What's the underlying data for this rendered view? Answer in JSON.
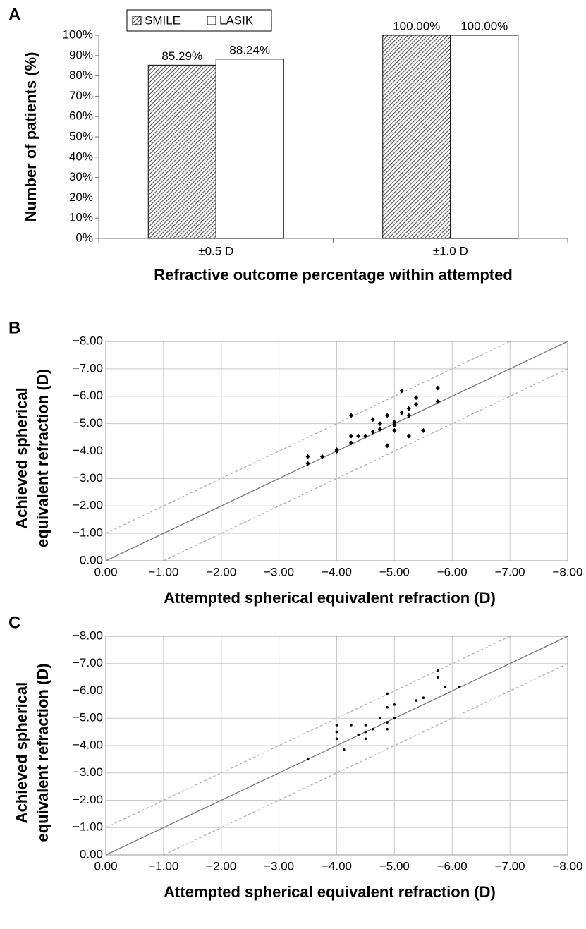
{
  "chart_data": [
    {
      "type": "bar",
      "panel": "A",
      "xlabel": "Refractive outcome percentage within attempted",
      "ylabel": "Number of patients (%)",
      "categories": [
        "±0.5 D",
        "±1.0 D"
      ],
      "series": [
        {
          "name": "SMILE",
          "color": "#555555",
          "hatch": true,
          "values": [
            85.29,
            100
          ],
          "value_labels": [
            "85.29%",
            "100.00%"
          ]
        },
        {
          "name": "LASIK",
          "color": "#ffffff",
          "hatch": false,
          "values": [
            88.24,
            100
          ],
          "value_labels": [
            "88.24%",
            "100.00%"
          ]
        }
      ],
      "ylim": [
        0,
        100
      ],
      "yticks": [
        {
          "value": 0,
          "label": "0%"
        },
        {
          "value": 10,
          "label": "10%"
        },
        {
          "value": 20,
          "label": "20%"
        },
        {
          "value": 30,
          "label": "30%"
        },
        {
          "value": 40,
          "label": "40%"
        },
        {
          "value": 50,
          "label": "50%"
        },
        {
          "value": 60,
          "label": "60%"
        },
        {
          "value": 70,
          "label": "70%"
        },
        {
          "value": 80,
          "label": "80%"
        },
        {
          "value": 90,
          "label": "90%"
        },
        {
          "value": 100,
          "label": "100%"
        }
      ],
      "legend": "top-left",
      "grid": false
    },
    {
      "type": "scatter",
      "panel": "B",
      "xlabel": "Attempted spherical equivalent refraction (D)",
      "ylabel": [
        "Achieved spherical",
        "equivalent refraction (D)"
      ],
      "marker": "diamond",
      "color": "#000000",
      "x": [
        -3.5,
        -3.5,
        -3.75,
        -4.0,
        -4.0,
        -4.25,
        -4.25,
        -4.25,
        -4.375,
        -4.5,
        -4.625,
        -4.625,
        -4.75,
        -4.75,
        -4.875,
        -4.875,
        -5.0,
        -5.0,
        -5.0,
        -5.125,
        -5.125,
        -5.25,
        -5.25,
        -5.25,
        -5.375,
        -5.375,
        -5.5,
        -5.75,
        -5.75
      ],
      "values": [
        -3.8,
        -3.55,
        -3.8,
        -4.05,
        -4.0,
        -5.3,
        -4.55,
        -4.3,
        -4.55,
        -4.55,
        -5.15,
        -4.7,
        -5.0,
        -4.8,
        -5.3,
        -4.2,
        -5.05,
        -4.75,
        -4.95,
        -6.2,
        -5.4,
        -5.55,
        -5.3,
        -4.55,
        -5.95,
        -5.7,
        -4.75,
        -6.3,
        -5.8
      ],
      "xlim": [
        0,
        -8
      ],
      "ylim": [
        0,
        -8
      ],
      "xticks": [
        {
          "value": 0,
          "label": "0.00"
        },
        {
          "value": -1,
          "label": "−1.00"
        },
        {
          "value": -2,
          "label": "−2.00"
        },
        {
          "value": -3,
          "label": "−3.00"
        },
        {
          "value": -4,
          "label": "−4.00"
        },
        {
          "value": -5,
          "label": "−5.00"
        },
        {
          "value": -6,
          "label": "−6.00"
        },
        {
          "value": -7,
          "label": "−7.00"
        },
        {
          "value": -8,
          "label": "−8.00"
        }
      ],
      "yticks": [
        {
          "value": 0,
          "label": "0.00"
        },
        {
          "value": -1,
          "label": "−1.00"
        },
        {
          "value": -2,
          "label": "−2.00"
        },
        {
          "value": -3,
          "label": "−3.00"
        },
        {
          "value": -4,
          "label": "−4.00"
        },
        {
          "value": -5,
          "label": "−5.00"
        },
        {
          "value": -6,
          "label": "−6.00"
        },
        {
          "value": -7,
          "label": "−7.00"
        },
        {
          "value": -8,
          "label": "−8.00"
        }
      ],
      "grid": true
    },
    {
      "type": "scatter",
      "panel": "C",
      "xlabel": "Attempted spherical equivalent refraction (D)",
      "ylabel": [
        "Achieved spherical",
        "equivalent refraction (D)"
      ],
      "marker": "circle",
      "color": "#000000",
      "x": [
        -3.5,
        -4.0,
        -4.0,
        -4.0,
        -4.125,
        -4.25,
        -4.375,
        -4.5,
        -4.5,
        -4.5,
        -4.625,
        -4.75,
        -4.875,
        -4.875,
        -4.875,
        -4.875,
        -5.0,
        -5.0,
        -5.375,
        -5.5,
        -5.75,
        -5.75,
        -5.875,
        -6.125
      ],
      "values": [
        -3.5,
        -4.75,
        -4.5,
        -4.25,
        -3.85,
        -4.75,
        -4.4,
        -4.75,
        -4.25,
        -4.5,
        -4.6,
        -5.0,
        -5.9,
        -5.4,
        -4.85,
        -4.6,
        -5.5,
        -5.0,
        -5.65,
        -5.75,
        -6.75,
        -6.5,
        -6.15,
        -6.15
      ],
      "xlim": [
        0,
        -8
      ],
      "ylim": [
        0,
        -8
      ],
      "xticks": [
        {
          "value": 0,
          "label": "0.00"
        },
        {
          "value": -1,
          "label": "−1.00"
        },
        {
          "value": -2,
          "label": "−2.00"
        },
        {
          "value": -3,
          "label": "−3.00"
        },
        {
          "value": -4,
          "label": "−4.00"
        },
        {
          "value": -5,
          "label": "−5.00"
        },
        {
          "value": -6,
          "label": "−6.00"
        },
        {
          "value": -7,
          "label": "−7.00"
        },
        {
          "value": -8,
          "label": "−8.00"
        }
      ],
      "yticks": [
        {
          "value": 0,
          "label": "0.00"
        },
        {
          "value": -1,
          "label": "−1.00"
        },
        {
          "value": -2,
          "label": "−2.00"
        },
        {
          "value": -3,
          "label": "−3.00"
        },
        {
          "value": -4,
          "label": "−4.00"
        },
        {
          "value": -5,
          "label": "−5.00"
        },
        {
          "value": -6,
          "label": "−6.00"
        },
        {
          "value": -7,
          "label": "−7.00"
        },
        {
          "value": -8,
          "label": "−8.00"
        }
      ],
      "grid": true
    }
  ]
}
